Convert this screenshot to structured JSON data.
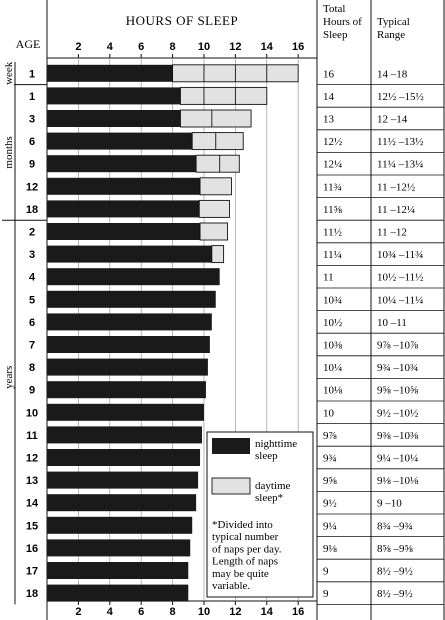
{
  "chart_data": {
    "type": "bar",
    "orientation": "horizontal",
    "stacked": true,
    "title": "HOURS OF SLEEP",
    "axis_label_left": "AGE",
    "x_ticks": [
      2,
      4,
      6,
      8,
      10,
      12,
      14,
      16
    ],
    "xlim": [
      0,
      17.2
    ],
    "columns": {
      "total": "Total Hours of Sleep",
      "range": "Typical Range"
    },
    "groups": [
      {
        "label": "week",
        "from": 0,
        "to": 0
      },
      {
        "label": "months",
        "from": 1,
        "to": 6
      },
      {
        "label": "years",
        "from": 7,
        "to": 23
      }
    ],
    "legend": {
      "position": "inside-lower-right",
      "night": "nighttime sleep",
      "day": "daytime sleep*",
      "note": "*Divided into typical number of naps per day. Length of naps may be quite variable."
    },
    "colors": {
      "night": "#1a1a1a",
      "day": "#e2e2e2"
    },
    "series": [
      {
        "name": "nighttime sleep",
        "values": [
          8,
          8.5,
          8.5,
          9.25,
          9.5,
          9.75,
          9.7,
          9.75,
          10.5,
          11,
          10.75,
          10.5,
          10.375,
          10.25,
          10.125,
          10,
          9.875,
          9.75,
          9.625,
          9.5,
          9.25,
          9.125,
          9,
          9
        ]
      },
      {
        "name": "daytime sleep*",
        "values": [
          8,
          5.5,
          4.5,
          3.25,
          2.75,
          2,
          1.925,
          1.75,
          0.75,
          0,
          0,
          0,
          0,
          0,
          0,
          0,
          0,
          0,
          0,
          0,
          0,
          0,
          0,
          0
        ]
      }
    ],
    "segment_dividers": [
      [
        10,
        12,
        14
      ],
      [
        10,
        12
      ],
      [
        10.5
      ],
      [
        10.75
      ],
      [
        11
      ],
      [],
      [],
      [],
      [],
      [],
      [],
      [],
      [],
      [],
      [],
      [],
      [],
      [],
      [],
      [],
      [],
      [],
      [],
      []
    ],
    "rows": [
      {
        "age": "1",
        "total": "16",
        "range": "14  –18"
      },
      {
        "age": "1",
        "total": "14",
        "range": "12½ –15½"
      },
      {
        "age": "3",
        "total": "13",
        "range": "12  –14"
      },
      {
        "age": "6",
        "total": "12½",
        "range": "11½ –13½"
      },
      {
        "age": "9",
        "total": "12¼",
        "range": "11¼ –13¼"
      },
      {
        "age": "12",
        "total": "11¾",
        "range": "11  –12½"
      },
      {
        "age": "18",
        "total": "11⅝",
        "range": "11  –12¼"
      },
      {
        "age": "2",
        "total": "11½",
        "range": "11  –12"
      },
      {
        "age": "3",
        "total": "11¼",
        "range": "10¾ –11¾"
      },
      {
        "age": "4",
        "total": "11",
        "range": "10½ –11½"
      },
      {
        "age": "5",
        "total": "10¾",
        "range": "10¼ –11¼"
      },
      {
        "age": "6",
        "total": "10½",
        "range": "10  –11"
      },
      {
        "age": "7",
        "total": "10⅜",
        "range": "9⅞ –10⅞"
      },
      {
        "age": "8",
        "total": "10¼",
        "range": "9¾ –10¾"
      },
      {
        "age": "9",
        "total": "10⅛",
        "range": "9⅝ –10⅝"
      },
      {
        "age": "10",
        "total": "10",
        "range": "9½ –10½"
      },
      {
        "age": "11",
        "total": "9⅞",
        "range": "9⅜ –10⅜"
      },
      {
        "age": "12",
        "total": "9¾",
        "range": "9¼ –10¼"
      },
      {
        "age": "13",
        "total": "9⅝",
        "range": "9⅛ –10⅛"
      },
      {
        "age": "14",
        "total": "9½",
        "range": "9  –10"
      },
      {
        "age": "15",
        "total": "9¼",
        "range": "8¾ –9¾"
      },
      {
        "age": "16",
        "total": "9⅛",
        "range": "8⅝ –9⅝"
      },
      {
        "age": "17",
        "total": "9",
        "range": "8½ –9½"
      },
      {
        "age": "18",
        "total": "9",
        "range": "8½ –9½"
      }
    ]
  }
}
